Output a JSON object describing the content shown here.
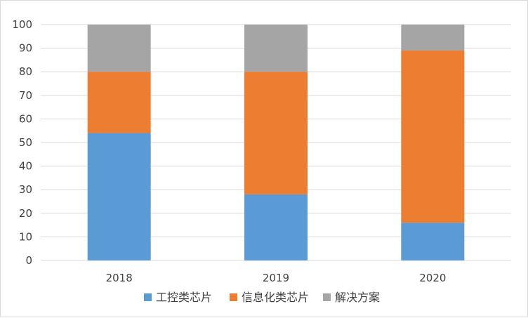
{
  "chart_data": {
    "type": "bar",
    "stacked": true,
    "categories": [
      "2018",
      "2019",
      "2020"
    ],
    "series": [
      {
        "name": "工控类芯片",
        "values": [
          54,
          28,
          16
        ],
        "color": "#5b9bd5"
      },
      {
        "name": "信息化类芯片",
        "values": [
          26,
          52,
          73
        ],
        "color": "#ed7d31"
      },
      {
        "name": "解决方案",
        "values": [
          20,
          20,
          11
        ],
        "color": "#a5a5a5"
      }
    ],
    "ylim": [
      0,
      100
    ],
    "yticks": [
      "0",
      "10",
      "20",
      "30",
      "40",
      "50",
      "60",
      "70",
      "80",
      "90",
      "100"
    ],
    "grid": true,
    "legend_position": "bottom",
    "title": "",
    "xlabel": "",
    "ylabel": ""
  }
}
